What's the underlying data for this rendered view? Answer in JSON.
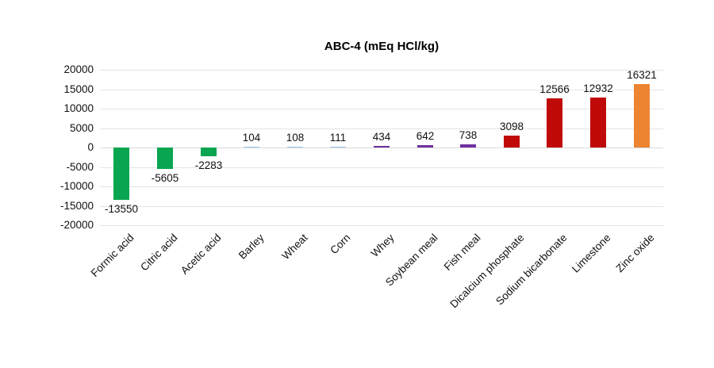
{
  "chart": {
    "title": "ABC-4 (mEq HCl/kg)"
  },
  "chart_data": {
    "type": "bar",
    "title": "ABC-4 (mEq HCl/kg)",
    "categories": [
      "Formic acid",
      "Citric acid",
      "Acetic acid",
      "Barley",
      "Wheat",
      "Corn",
      "Whey",
      "Soybean meal",
      "Fish meal",
      "Dicalcium phosphate",
      "Sodium bicarbonate",
      "Limestone",
      "Zinc oxide"
    ],
    "values": [
      -13550,
      -5605,
      -2283,
      104,
      108,
      111,
      434,
      642,
      738,
      3098,
      12566,
      12932,
      16321
    ],
    "bar_colors": [
      "#0aa551",
      "#0aa551",
      "#0aa551",
      "#9dc3e6",
      "#9dc3e6",
      "#9dc3e6",
      "#7030a0",
      "#7030a0",
      "#7030a0",
      "#c00a0a",
      "#c00a0a",
      "#c00a0a",
      "#ed8432"
    ],
    "data_labels": [
      "-13550",
      "-5605",
      "-2283",
      "104",
      "108",
      "111",
      "434",
      "642",
      "738",
      "3098",
      "12566",
      "12932",
      "16321"
    ],
    "xlabel": "",
    "ylabel": "",
    "ylim": [
      -20000,
      20000
    ],
    "yticks": [
      20000,
      15000,
      10000,
      5000,
      0,
      -5000,
      -10000,
      -15000,
      -20000
    ],
    "grid": true,
    "legend": "none",
    "background_color": "#ffffff",
    "text_color": "#111111",
    "gridline_color": "#e4e4e4"
  }
}
